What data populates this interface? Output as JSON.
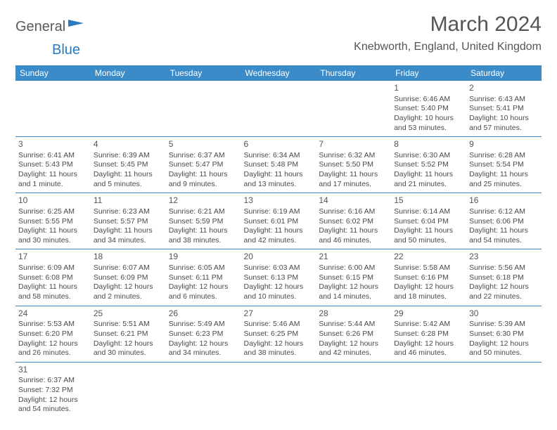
{
  "logo": {
    "part1": "General",
    "part2": "Blue"
  },
  "title": "March 2024",
  "location": "Knebworth, England, United Kingdom",
  "colors": {
    "headerBg": "#3b8bc9",
    "headerText": "#ffffff",
    "border": "#3b8bc9",
    "text": "#4a4a4a"
  },
  "dayNames": [
    "Sunday",
    "Monday",
    "Tuesday",
    "Wednesday",
    "Thursday",
    "Friday",
    "Saturday"
  ],
  "weeks": [
    [
      null,
      null,
      null,
      null,
      null,
      {
        "n": "1",
        "sr": "Sunrise: 6:46 AM",
        "ss": "Sunset: 5:40 PM",
        "dl": "Daylight: 10 hours and 53 minutes."
      },
      {
        "n": "2",
        "sr": "Sunrise: 6:43 AM",
        "ss": "Sunset: 5:41 PM",
        "dl": "Daylight: 10 hours and 57 minutes."
      }
    ],
    [
      {
        "n": "3",
        "sr": "Sunrise: 6:41 AM",
        "ss": "Sunset: 5:43 PM",
        "dl": "Daylight: 11 hours and 1 minute."
      },
      {
        "n": "4",
        "sr": "Sunrise: 6:39 AM",
        "ss": "Sunset: 5:45 PM",
        "dl": "Daylight: 11 hours and 5 minutes."
      },
      {
        "n": "5",
        "sr": "Sunrise: 6:37 AM",
        "ss": "Sunset: 5:47 PM",
        "dl": "Daylight: 11 hours and 9 minutes."
      },
      {
        "n": "6",
        "sr": "Sunrise: 6:34 AM",
        "ss": "Sunset: 5:48 PM",
        "dl": "Daylight: 11 hours and 13 minutes."
      },
      {
        "n": "7",
        "sr": "Sunrise: 6:32 AM",
        "ss": "Sunset: 5:50 PM",
        "dl": "Daylight: 11 hours and 17 minutes."
      },
      {
        "n": "8",
        "sr": "Sunrise: 6:30 AM",
        "ss": "Sunset: 5:52 PM",
        "dl": "Daylight: 11 hours and 21 minutes."
      },
      {
        "n": "9",
        "sr": "Sunrise: 6:28 AM",
        "ss": "Sunset: 5:54 PM",
        "dl": "Daylight: 11 hours and 25 minutes."
      }
    ],
    [
      {
        "n": "10",
        "sr": "Sunrise: 6:25 AM",
        "ss": "Sunset: 5:55 PM",
        "dl": "Daylight: 11 hours and 30 minutes."
      },
      {
        "n": "11",
        "sr": "Sunrise: 6:23 AM",
        "ss": "Sunset: 5:57 PM",
        "dl": "Daylight: 11 hours and 34 minutes."
      },
      {
        "n": "12",
        "sr": "Sunrise: 6:21 AM",
        "ss": "Sunset: 5:59 PM",
        "dl": "Daylight: 11 hours and 38 minutes."
      },
      {
        "n": "13",
        "sr": "Sunrise: 6:19 AM",
        "ss": "Sunset: 6:01 PM",
        "dl": "Daylight: 11 hours and 42 minutes."
      },
      {
        "n": "14",
        "sr": "Sunrise: 6:16 AM",
        "ss": "Sunset: 6:02 PM",
        "dl": "Daylight: 11 hours and 46 minutes."
      },
      {
        "n": "15",
        "sr": "Sunrise: 6:14 AM",
        "ss": "Sunset: 6:04 PM",
        "dl": "Daylight: 11 hours and 50 minutes."
      },
      {
        "n": "16",
        "sr": "Sunrise: 6:12 AM",
        "ss": "Sunset: 6:06 PM",
        "dl": "Daylight: 11 hours and 54 minutes."
      }
    ],
    [
      {
        "n": "17",
        "sr": "Sunrise: 6:09 AM",
        "ss": "Sunset: 6:08 PM",
        "dl": "Daylight: 11 hours and 58 minutes."
      },
      {
        "n": "18",
        "sr": "Sunrise: 6:07 AM",
        "ss": "Sunset: 6:09 PM",
        "dl": "Daylight: 12 hours and 2 minutes."
      },
      {
        "n": "19",
        "sr": "Sunrise: 6:05 AM",
        "ss": "Sunset: 6:11 PM",
        "dl": "Daylight: 12 hours and 6 minutes."
      },
      {
        "n": "20",
        "sr": "Sunrise: 6:03 AM",
        "ss": "Sunset: 6:13 PM",
        "dl": "Daylight: 12 hours and 10 minutes."
      },
      {
        "n": "21",
        "sr": "Sunrise: 6:00 AM",
        "ss": "Sunset: 6:15 PM",
        "dl": "Daylight: 12 hours and 14 minutes."
      },
      {
        "n": "22",
        "sr": "Sunrise: 5:58 AM",
        "ss": "Sunset: 6:16 PM",
        "dl": "Daylight: 12 hours and 18 minutes."
      },
      {
        "n": "23",
        "sr": "Sunrise: 5:56 AM",
        "ss": "Sunset: 6:18 PM",
        "dl": "Daylight: 12 hours and 22 minutes."
      }
    ],
    [
      {
        "n": "24",
        "sr": "Sunrise: 5:53 AM",
        "ss": "Sunset: 6:20 PM",
        "dl": "Daylight: 12 hours and 26 minutes."
      },
      {
        "n": "25",
        "sr": "Sunrise: 5:51 AM",
        "ss": "Sunset: 6:21 PM",
        "dl": "Daylight: 12 hours and 30 minutes."
      },
      {
        "n": "26",
        "sr": "Sunrise: 5:49 AM",
        "ss": "Sunset: 6:23 PM",
        "dl": "Daylight: 12 hours and 34 minutes."
      },
      {
        "n": "27",
        "sr": "Sunrise: 5:46 AM",
        "ss": "Sunset: 6:25 PM",
        "dl": "Daylight: 12 hours and 38 minutes."
      },
      {
        "n": "28",
        "sr": "Sunrise: 5:44 AM",
        "ss": "Sunset: 6:26 PM",
        "dl": "Daylight: 12 hours and 42 minutes."
      },
      {
        "n": "29",
        "sr": "Sunrise: 5:42 AM",
        "ss": "Sunset: 6:28 PM",
        "dl": "Daylight: 12 hours and 46 minutes."
      },
      {
        "n": "30",
        "sr": "Sunrise: 5:39 AM",
        "ss": "Sunset: 6:30 PM",
        "dl": "Daylight: 12 hours and 50 minutes."
      }
    ],
    [
      {
        "n": "31",
        "sr": "Sunrise: 6:37 AM",
        "ss": "Sunset: 7:32 PM",
        "dl": "Daylight: 12 hours and 54 minutes."
      },
      null,
      null,
      null,
      null,
      null,
      null
    ]
  ]
}
